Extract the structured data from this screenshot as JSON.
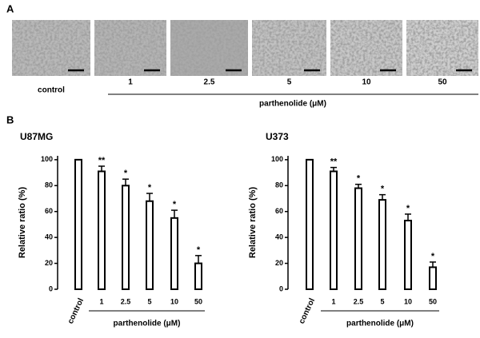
{
  "panel_a": {
    "label": "A",
    "labels": [
      "control",
      "1",
      "2.5",
      "5",
      "10",
      "50"
    ],
    "group_label": "parthenolide (μM)"
  },
  "panel_b_label": "B",
  "chart_data": [
    {
      "type": "bar",
      "title": "U87MG",
      "categories": [
        "control",
        "1",
        "2.5",
        "5",
        "10",
        "50"
      ],
      "values": [
        100,
        91,
        80,
        68,
        55,
        20
      ],
      "errors": [
        0,
        4,
        5,
        6,
        6,
        6
      ],
      "annotations": [
        null,
        "**",
        "*",
        "*",
        "*",
        "*"
      ],
      "xlabel": "parthenolide (μM)",
      "ylabel": "Relative  ratio (%)",
      "ylim": [
        0,
        103
      ],
      "yticks": [
        0,
        20,
        40,
        60,
        80,
        100
      ],
      "color": "#ffffff"
    },
    {
      "type": "bar",
      "title": "U373",
      "categories": [
        "control",
        "1",
        "2.5",
        "5",
        "10",
        "50"
      ],
      "values": [
        100,
        91,
        78,
        69,
        53,
        17
      ],
      "errors": [
        0,
        3,
        3,
        4,
        5,
        4
      ],
      "annotations": [
        null,
        "**",
        "*",
        "*",
        "*",
        "*"
      ],
      "xlabel": "parthenolide (μM)",
      "ylabel": "Relative  ratio (%)",
      "ylim": [
        0,
        103
      ],
      "yticks": [
        0,
        20,
        40,
        60,
        80,
        100
      ],
      "color": "#ffffff"
    }
  ]
}
